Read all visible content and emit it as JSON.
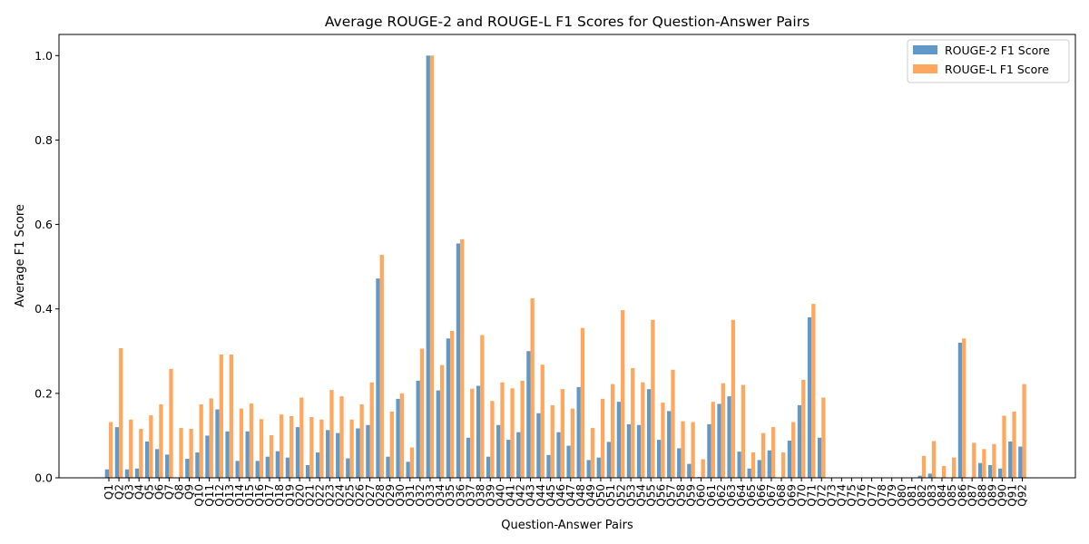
{
  "chart_data": {
    "type": "bar",
    "title": "Average ROUGE-2 and ROUGE-L F1 Scores for Question-Answer Pairs",
    "xlabel": "Question-Answer Pairs",
    "ylabel": "Average F1 Score",
    "ylim": [
      0,
      1.05
    ],
    "yticks": [
      "0.0",
      "0.2",
      "0.4",
      "0.6",
      "0.8",
      "1.0"
    ],
    "legend_position": "top-right",
    "grid": false,
    "categories": [
      "Q1",
      "Q2",
      "Q3",
      "Q4",
      "Q5",
      "Q6",
      "Q7",
      "Q8",
      "Q9",
      "Q10",
      "Q11",
      "Q12",
      "Q13",
      "Q14",
      "Q15",
      "Q16",
      "Q17",
      "Q18",
      "Q19",
      "Q20",
      "Q21",
      "Q22",
      "Q23",
      "Q24",
      "Q25",
      "Q26",
      "Q27",
      "Q28",
      "Q29",
      "Q30",
      "Q31",
      "Q32",
      "Q33",
      "Q34",
      "Q35",
      "Q36",
      "Q37",
      "Q38",
      "Q39",
      "Q40",
      "Q41",
      "Q42",
      "Q43",
      "Q44",
      "Q45",
      "Q46",
      "Q47",
      "Q48",
      "Q49",
      "Q50",
      "Q51",
      "Q52",
      "Q53",
      "Q54",
      "Q55",
      "Q56",
      "Q57",
      "Q58",
      "Q59",
      "Q60",
      "Q61",
      "Q62",
      "Q63",
      "Q64",
      "Q65",
      "Q66",
      "Q67",
      "Q68",
      "Q69",
      "Q70",
      "Q71",
      "Q72",
      "Q73",
      "Q74",
      "Q75",
      "Q76",
      "Q77",
      "Q78",
      "Q79",
      "Q80",
      "Q81",
      "Q82",
      "Q83",
      "Q84",
      "Q85",
      "Q86",
      "Q87",
      "Q88",
      "Q89",
      "Q90",
      "Q91",
      "Q92"
    ],
    "series": [
      {
        "name": "ROUGE-2 F1 Score",
        "color": "#6099c7",
        "values": [
          0.02,
          0.12,
          0.02,
          0.022,
          0.086,
          0.068,
          0.055,
          0.0,
          0.045,
          0.06,
          0.1,
          0.162,
          0.11,
          0.04,
          0.11,
          0.04,
          0.05,
          0.063,
          0.048,
          0.12,
          0.03,
          0.06,
          0.113,
          0.106,
          0.046,
          0.117,
          0.125,
          0.472,
          0.05,
          0.187,
          0.038,
          0.23,
          1.0,
          0.207,
          0.33,
          0.555,
          0.095,
          0.218,
          0.05,
          0.125,
          0.09,
          0.108,
          0.3,
          0.153,
          0.054,
          0.108,
          0.076,
          0.215,
          0.042,
          0.048,
          0.085,
          0.18,
          0.127,
          0.125,
          0.21,
          0.09,
          0.158,
          0.07,
          0.033,
          0.002,
          0.127,
          0.175,
          0.193,
          0.062,
          0.022,
          0.042,
          0.065,
          0.0,
          0.088,
          0.172,
          0.38,
          0.095,
          0.0,
          0.0,
          0.0,
          0.0,
          0.0,
          0.0,
          0.0,
          0.0,
          0.0,
          0.005,
          0.01,
          0.0,
          0.0,
          0.32,
          0.0,
          0.035,
          0.03,
          0.022,
          0.086,
          0.074
        ]
      },
      {
        "name": "ROUGE-L F1 Score",
        "color": "#fea85f",
        "values": [
          0.132,
          0.307,
          0.138,
          0.116,
          0.148,
          0.174,
          0.258,
          0.118,
          0.116,
          0.174,
          0.188,
          0.292,
          0.292,
          0.164,
          0.176,
          0.139,
          0.101,
          0.15,
          0.146,
          0.19,
          0.144,
          0.138,
          0.208,
          0.193,
          0.138,
          0.174,
          0.226,
          0.528,
          0.157,
          0.2,
          0.072,
          0.306,
          1.0,
          0.267,
          0.348,
          0.565,
          0.211,
          0.338,
          0.182,
          0.226,
          0.212,
          0.23,
          0.425,
          0.268,
          0.172,
          0.21,
          0.164,
          0.355,
          0.118,
          0.187,
          0.222,
          0.397,
          0.26,
          0.226,
          0.374,
          0.178,
          0.256,
          0.134,
          0.132,
          0.044,
          0.18,
          0.224,
          0.374,
          0.22,
          0.06,
          0.106,
          0.12,
          0.06,
          0.132,
          0.232,
          0.412,
          0.19,
          0.0,
          0.0,
          0.0,
          0.0,
          0.0,
          0.0,
          0.0,
          0.0,
          0.0,
          0.052,
          0.087,
          0.028,
          0.048,
          0.33,
          0.083,
          0.068,
          0.08,
          0.147,
          0.157,
          0.222
        ]
      }
    ]
  }
}
